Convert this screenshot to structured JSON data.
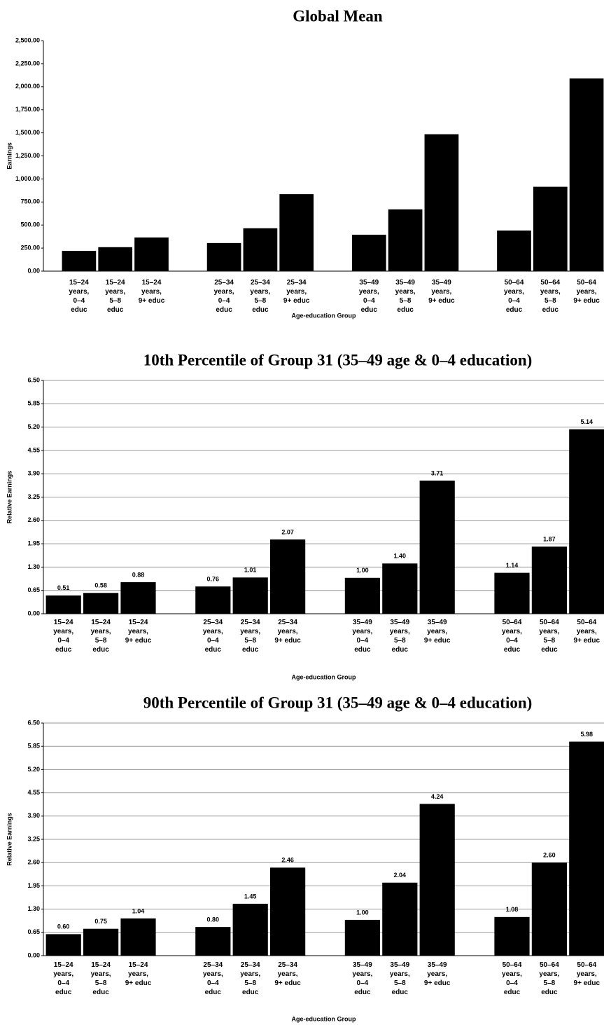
{
  "chart_data": [
    {
      "type": "bar",
      "title": "Global Mean",
      "x_label": "Age-education Group",
      "y_label": "Earnings",
      "color": "#000000",
      "grid": false,
      "categories": [
        "15–24 years, 0–4 educ",
        "15–24 years, 5–8 educ",
        "15–24 years, 9+ educ",
        null,
        "25–34 years, 0–4 educ",
        "25–34 years, 5–8 educ",
        "25–34 years, 9+ educ",
        null,
        "35–49 years, 0–4 educ",
        "35–49 years, 5–8 educ",
        "35–49 years, 9+ educ",
        null,
        "50–64 years, 0–4 educ",
        "50–64 years, 5–8 educ",
        "50–64 years, 9+ educ"
      ],
      "values": [
        220,
        260,
        365,
        null,
        305,
        465,
        835,
        null,
        395,
        670,
        1485,
        null,
        440,
        915,
        2090
      ],
      "ylim": [
        0,
        2500
      ],
      "yticks": [
        {
          "value": 0,
          "label": "0.00"
        },
        {
          "value": 250,
          "label": "250.00"
        },
        {
          "value": 500,
          "label": "500.00"
        },
        {
          "value": 750,
          "label": "750.00"
        },
        {
          "value": 1000,
          "label": "1,000.00"
        },
        {
          "value": 1250,
          "label": "1,250.00"
        },
        {
          "value": 1500,
          "label": "1,500.00"
        },
        {
          "value": 1750,
          "label": "1,750.00"
        },
        {
          "value": 2000,
          "label": "2,000.00"
        },
        {
          "value": 2250,
          "label": "2,250.00"
        },
        {
          "value": 2500,
          "label": "2,500.00"
        }
      ]
    },
    {
      "type": "bar",
      "title": "10th Percentile of Group 31 (35–49 age & 0–4 education)",
      "x_label": "Age-education Group",
      "y_label": "Relative Earnings",
      "color": "#000000",
      "grid": true,
      "categories": [
        "15–24 years, 0–4 educ",
        "15–24 years, 5–8 educ",
        "15–24 years, 9+ educ",
        null,
        "25–34 years, 0–4 educ",
        "25–34 years, 5–8 educ",
        "25–34 years, 9+ educ",
        null,
        "35–49 years, 0–4 educ",
        "35–49 years, 5–8 educ",
        "35–49 years, 9+ educ",
        null,
        "50–64 years, 0–4 educ",
        "50–64 years, 5–8 educ",
        "50–64 years, 9+ educ"
      ],
      "values": [
        0.51,
        0.58,
        0.88,
        null,
        0.76,
        1.01,
        2.07,
        null,
        1.0,
        1.4,
        3.71,
        null,
        1.14,
        1.87,
        5.14
      ],
      "value_labels": [
        "0.51",
        "0.58",
        "0.88",
        null,
        "0.76",
        "1.01",
        "2.07",
        null,
        "1.00",
        "1.40",
        "3.71",
        null,
        "1.14",
        "1.87",
        "5.14"
      ],
      "ylim": [
        0,
        6.5
      ],
      "yticks": [
        {
          "value": 0,
          "label": "0.00"
        },
        {
          "value": 0.65,
          "label": "0.65"
        },
        {
          "value": 1.3,
          "label": "1.30"
        },
        {
          "value": 1.95,
          "label": "1.95"
        },
        {
          "value": 2.6,
          "label": "2.60"
        },
        {
          "value": 3.25,
          "label": "3.25"
        },
        {
          "value": 3.9,
          "label": "3.90"
        },
        {
          "value": 4.55,
          "label": "4.55"
        },
        {
          "value": 5.2,
          "label": "5.20"
        },
        {
          "value": 5.85,
          "label": "5.85"
        },
        {
          "value": 6.5,
          "label": "6.50"
        }
      ]
    },
    {
      "type": "bar",
      "title": "90th Percentile of Group 31 (35–49 age & 0–4 education)",
      "x_label": "Age-education Group",
      "y_label": "Relative Earnings",
      "color": "#000000",
      "grid": true,
      "categories": [
        "15–24 years, 0–4 educ",
        "15–24 years, 5–8 educ",
        "15–24 years, 9+ educ",
        null,
        "25–34 years, 0–4 educ",
        "25–34 years, 5–8 educ",
        "25–34 years, 9+ educ",
        null,
        "35–49 years, 0–4 educ",
        "35–49 years, 5–8 educ",
        "35–49 years, 9+ educ",
        null,
        "50–64 years, 0–4 educ",
        "50–64 years, 5–8 educ",
        "50–64 years, 9+ educ"
      ],
      "values": [
        0.6,
        0.75,
        1.04,
        null,
        0.8,
        1.45,
        2.46,
        null,
        1.0,
        2.04,
        4.24,
        null,
        1.08,
        2.6,
        5.98
      ],
      "value_labels": [
        "0.60",
        "0.75",
        "1.04",
        null,
        "0.80",
        "1.45",
        "2.46",
        null,
        "1.00",
        "2.04",
        "4.24",
        null,
        "1.08",
        "2.60",
        "5.98"
      ],
      "ylim": [
        0,
        6.5
      ],
      "yticks": [
        {
          "value": 0,
          "label": "0.00"
        },
        {
          "value": 0.65,
          "label": "0.65"
        },
        {
          "value": 1.3,
          "label": "1.30"
        },
        {
          "value": 1.95,
          "label": "1.95"
        },
        {
          "value": 2.6,
          "label": "2.60"
        },
        {
          "value": 3.25,
          "label": "3.25"
        },
        {
          "value": 3.9,
          "label": "3.90"
        },
        {
          "value": 4.55,
          "label": "4.55"
        },
        {
          "value": 5.2,
          "label": "5.20"
        },
        {
          "value": 5.85,
          "label": "5.85"
        },
        {
          "value": 6.5,
          "label": "6.50"
        }
      ]
    }
  ]
}
